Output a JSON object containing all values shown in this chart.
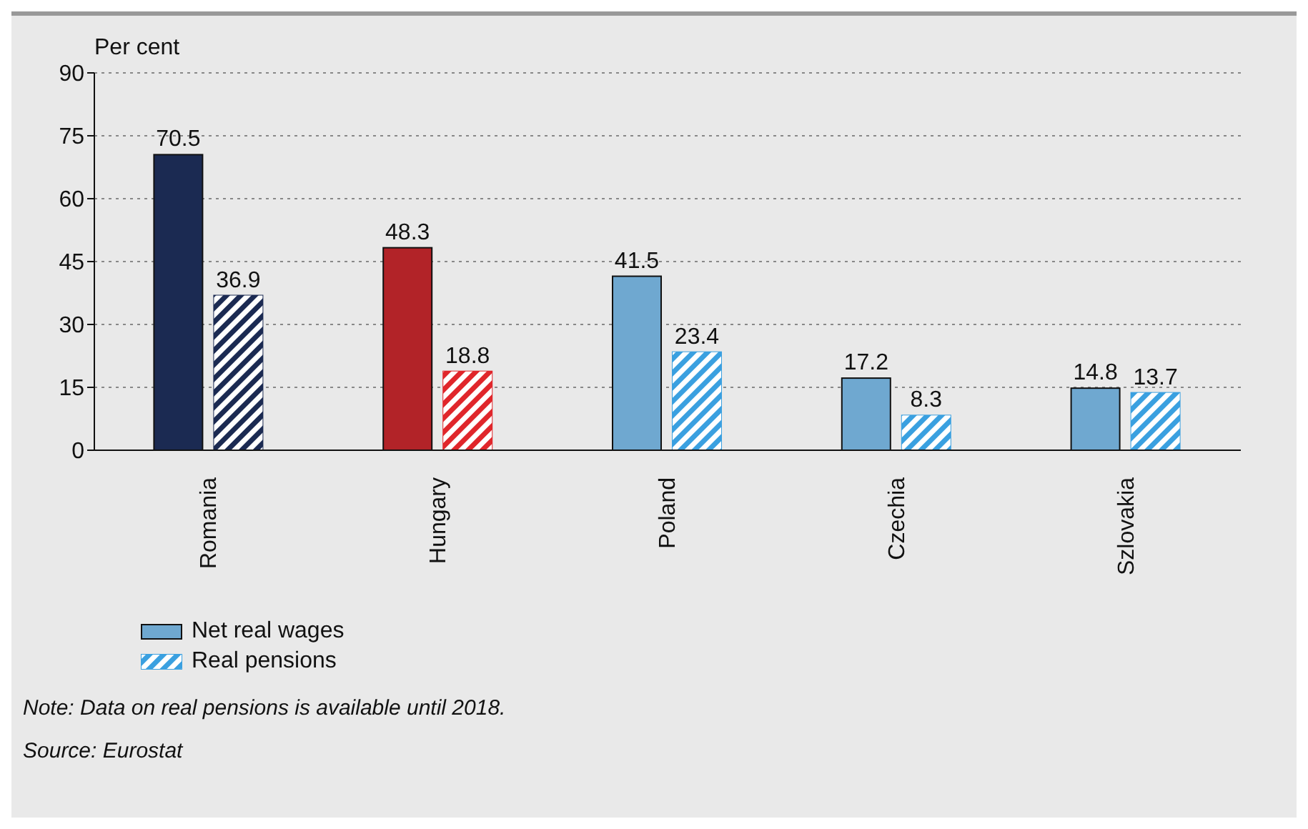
{
  "chart_data": {
    "type": "bar",
    "ylabel": "Per cent",
    "categories": [
      "Romania",
      "Hungary",
      "Poland",
      "Czechia",
      "Szlovakia"
    ],
    "series": [
      {
        "name": "Net real wages",
        "color": "#6fa8d0",
        "colors": [
          "#1b2a52",
          "#b22328",
          "#6fa8d0",
          "#6fa8d0",
          "#6fa8d0"
        ],
        "values": [
          70.5,
          48.3,
          41.5,
          17.2,
          14.8
        ]
      },
      {
        "name": "Real pensions",
        "color": "#3aa0e0",
        "colors": [
          "#1b2a52",
          "#e0262b",
          "#3aa0e0",
          "#3aa0e0",
          "#3aa0e0"
        ],
        "values": [
          36.9,
          18.8,
          23.4,
          8.3,
          13.7
        ]
      }
    ],
    "ylim": [
      0,
      90
    ],
    "yticks": [
      0,
      15,
      30,
      45,
      60,
      75,
      90
    ],
    "grid": "y",
    "legend": "bottom left",
    "data_labels": true,
    "annotations": [
      "Note: Data on real pensions is available until 2018.",
      "Source: Eurostat"
    ]
  }
}
